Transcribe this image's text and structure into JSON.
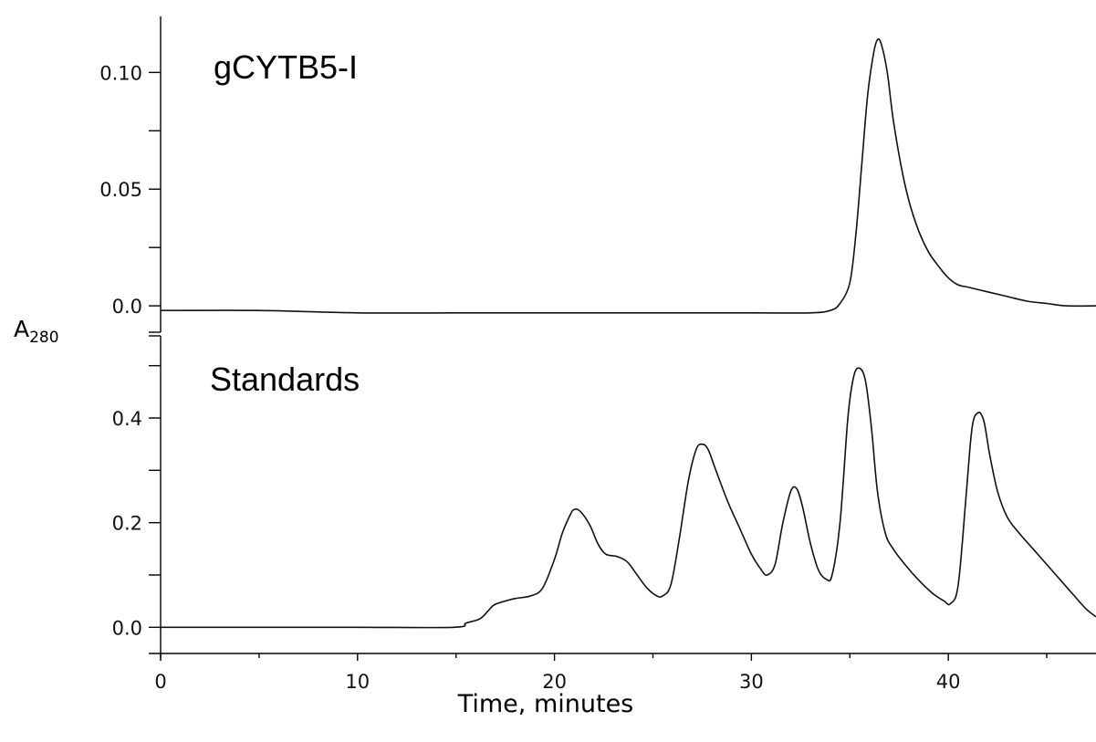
{
  "chart_data": {
    "type": "line",
    "xlabel": "Time, minutes",
    "x_ticks": [
      0,
      10,
      20,
      30,
      40
    ],
    "xlim": [
      0,
      47.5
    ],
    "ylabel": {
      "main": "A",
      "subscript": "280"
    },
    "panels": [
      {
        "title": "gCYTB5-I",
        "ylim": [
          -0.007,
          0.124
        ],
        "y_ticks": [
          0.0,
          0.05,
          0.1
        ],
        "y_tick_labels": [
          "0.0",
          "0.05",
          "0.10"
        ],
        "series": [
          {
            "x": [
              0,
              5,
              10,
              15,
              20,
              25,
              30,
              33,
              34,
              34.5,
              35,
              35.3,
              35.6,
              35.9,
              36.2,
              36.4,
              36.6,
              36.9,
              37.2,
              37.6,
              38,
              38.5,
              39,
              39.5,
              40,
              40.5,
              41,
              42,
              43,
              44,
              45,
              46,
              47.5
            ],
            "y": [
              -0.002,
              -0.002,
              -0.003,
              -0.003,
              -0.003,
              -0.003,
              -0.003,
              -0.003,
              -0.002,
              0.001,
              0.01,
              0.03,
              0.06,
              0.09,
              0.108,
              0.114,
              0.112,
              0.1,
              0.08,
              0.06,
              0.045,
              0.032,
              0.023,
              0.017,
              0.012,
              0.009,
              0.008,
              0.006,
              0.004,
              0.002,
              0.001,
              0.0,
              0.0
            ]
          }
        ]
      },
      {
        "title": "Standards",
        "ylim": [
          -0.05,
          0.55
        ],
        "y_ticks": [
          0.0,
          0.2,
          0.4
        ],
        "y_tick_labels": [
          "0.0",
          "0.2",
          "0.4"
        ],
        "series": [
          {
            "x": [
              0,
              5,
              10,
              14.9,
              15.5,
              16.2,
              16.6,
              16.9,
              17.3,
              18,
              18.8,
              19.4,
              20,
              20.4,
              20.8,
              21,
              21.3,
              21.8,
              22.2,
              22.6,
              23.2,
              23.7,
              24.2,
              24.7,
              25.2,
              25.5,
              25.9,
              26.3,
              26.8,
              27.2,
              27.5,
              27.8,
              28.2,
              28.8,
              29.4,
              30,
              30.5,
              30.8,
              31.2,
              31.6,
              32,
              32.3,
              32.6,
              33,
              33.4,
              33.8,
              34.1,
              34.5,
              34.9,
              35.2,
              35.5,
              35.8,
              36.1,
              36.4,
              36.8,
              37.2,
              37.8,
              38.5,
              39.2,
              39.8,
              40.1,
              40.5,
              40.9,
              41.2,
              41.5,
              41.8,
              42.1,
              42.5,
              43,
              43.6,
              44.3,
              45,
              45.7,
              46.4,
              47,
              47.5
            ],
            "y": [
              0.0,
              0.0,
              0.0,
              0.0,
              0.008,
              0.016,
              0.03,
              0.042,
              0.048,
              0.055,
              0.06,
              0.075,
              0.13,
              0.18,
              0.215,
              0.225,
              0.222,
              0.195,
              0.16,
              0.14,
              0.135,
              0.125,
              0.1,
              0.075,
              0.06,
              0.06,
              0.08,
              0.16,
              0.28,
              0.34,
              0.35,
              0.34,
              0.3,
              0.24,
              0.19,
              0.14,
              0.11,
              0.1,
              0.12,
              0.2,
              0.26,
              0.265,
              0.23,
              0.16,
              0.11,
              0.092,
              0.1,
              0.2,
              0.4,
              0.48,
              0.495,
              0.47,
              0.38,
              0.26,
              0.18,
              0.15,
              0.12,
              0.09,
              0.065,
              0.05,
              0.045,
              0.08,
              0.25,
              0.38,
              0.41,
              0.395,
              0.33,
              0.26,
              0.21,
              0.18,
              0.15,
              0.12,
              0.09,
              0.06,
              0.035,
              0.02
            ]
          }
        ]
      }
    ]
  }
}
